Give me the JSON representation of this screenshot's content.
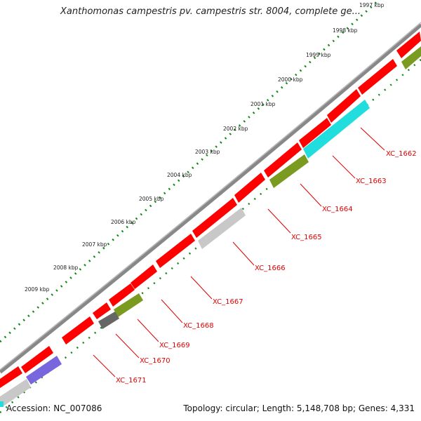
{
  "title": "Xanthomonas campestris pv. campestris str. 8004, complete ge...",
  "tick_labels": [
    "1997 kbp",
    "1998 kbp",
    "1999 kbp",
    "2000 kbp",
    "2001 kbp",
    "2002 kbp",
    "2003 kbp",
    "2004 kbp",
    "2005 kbp",
    "2006 kbp",
    "2007 kbp",
    "2008 kbp",
    "2009 kbp"
  ],
  "gene_labels": [
    "XC_1662",
    "XC_1663",
    "XC_1664",
    "XC_1665",
    "XC_1666",
    "XC_1667",
    "XC_1668",
    "XC_1669",
    "XC_1670",
    "XC_1671"
  ],
  "footer": {
    "accession": "Accession: NC_007086",
    "stats": "Topology: circular; Length: 5,148,708 bp; Genes: 4,331"
  },
  "colors": {
    "forward_gene": "#ff0000",
    "cyan_gene": "#22dddd",
    "olive_gene": "#7a9a20",
    "gray_gene": "#c8c8c8",
    "dark_gray_gene": "#666666",
    "purple_gene": "#7766dd",
    "tick_dots": "#118811",
    "backbone": "#888888",
    "label_red": "#e00000"
  }
}
